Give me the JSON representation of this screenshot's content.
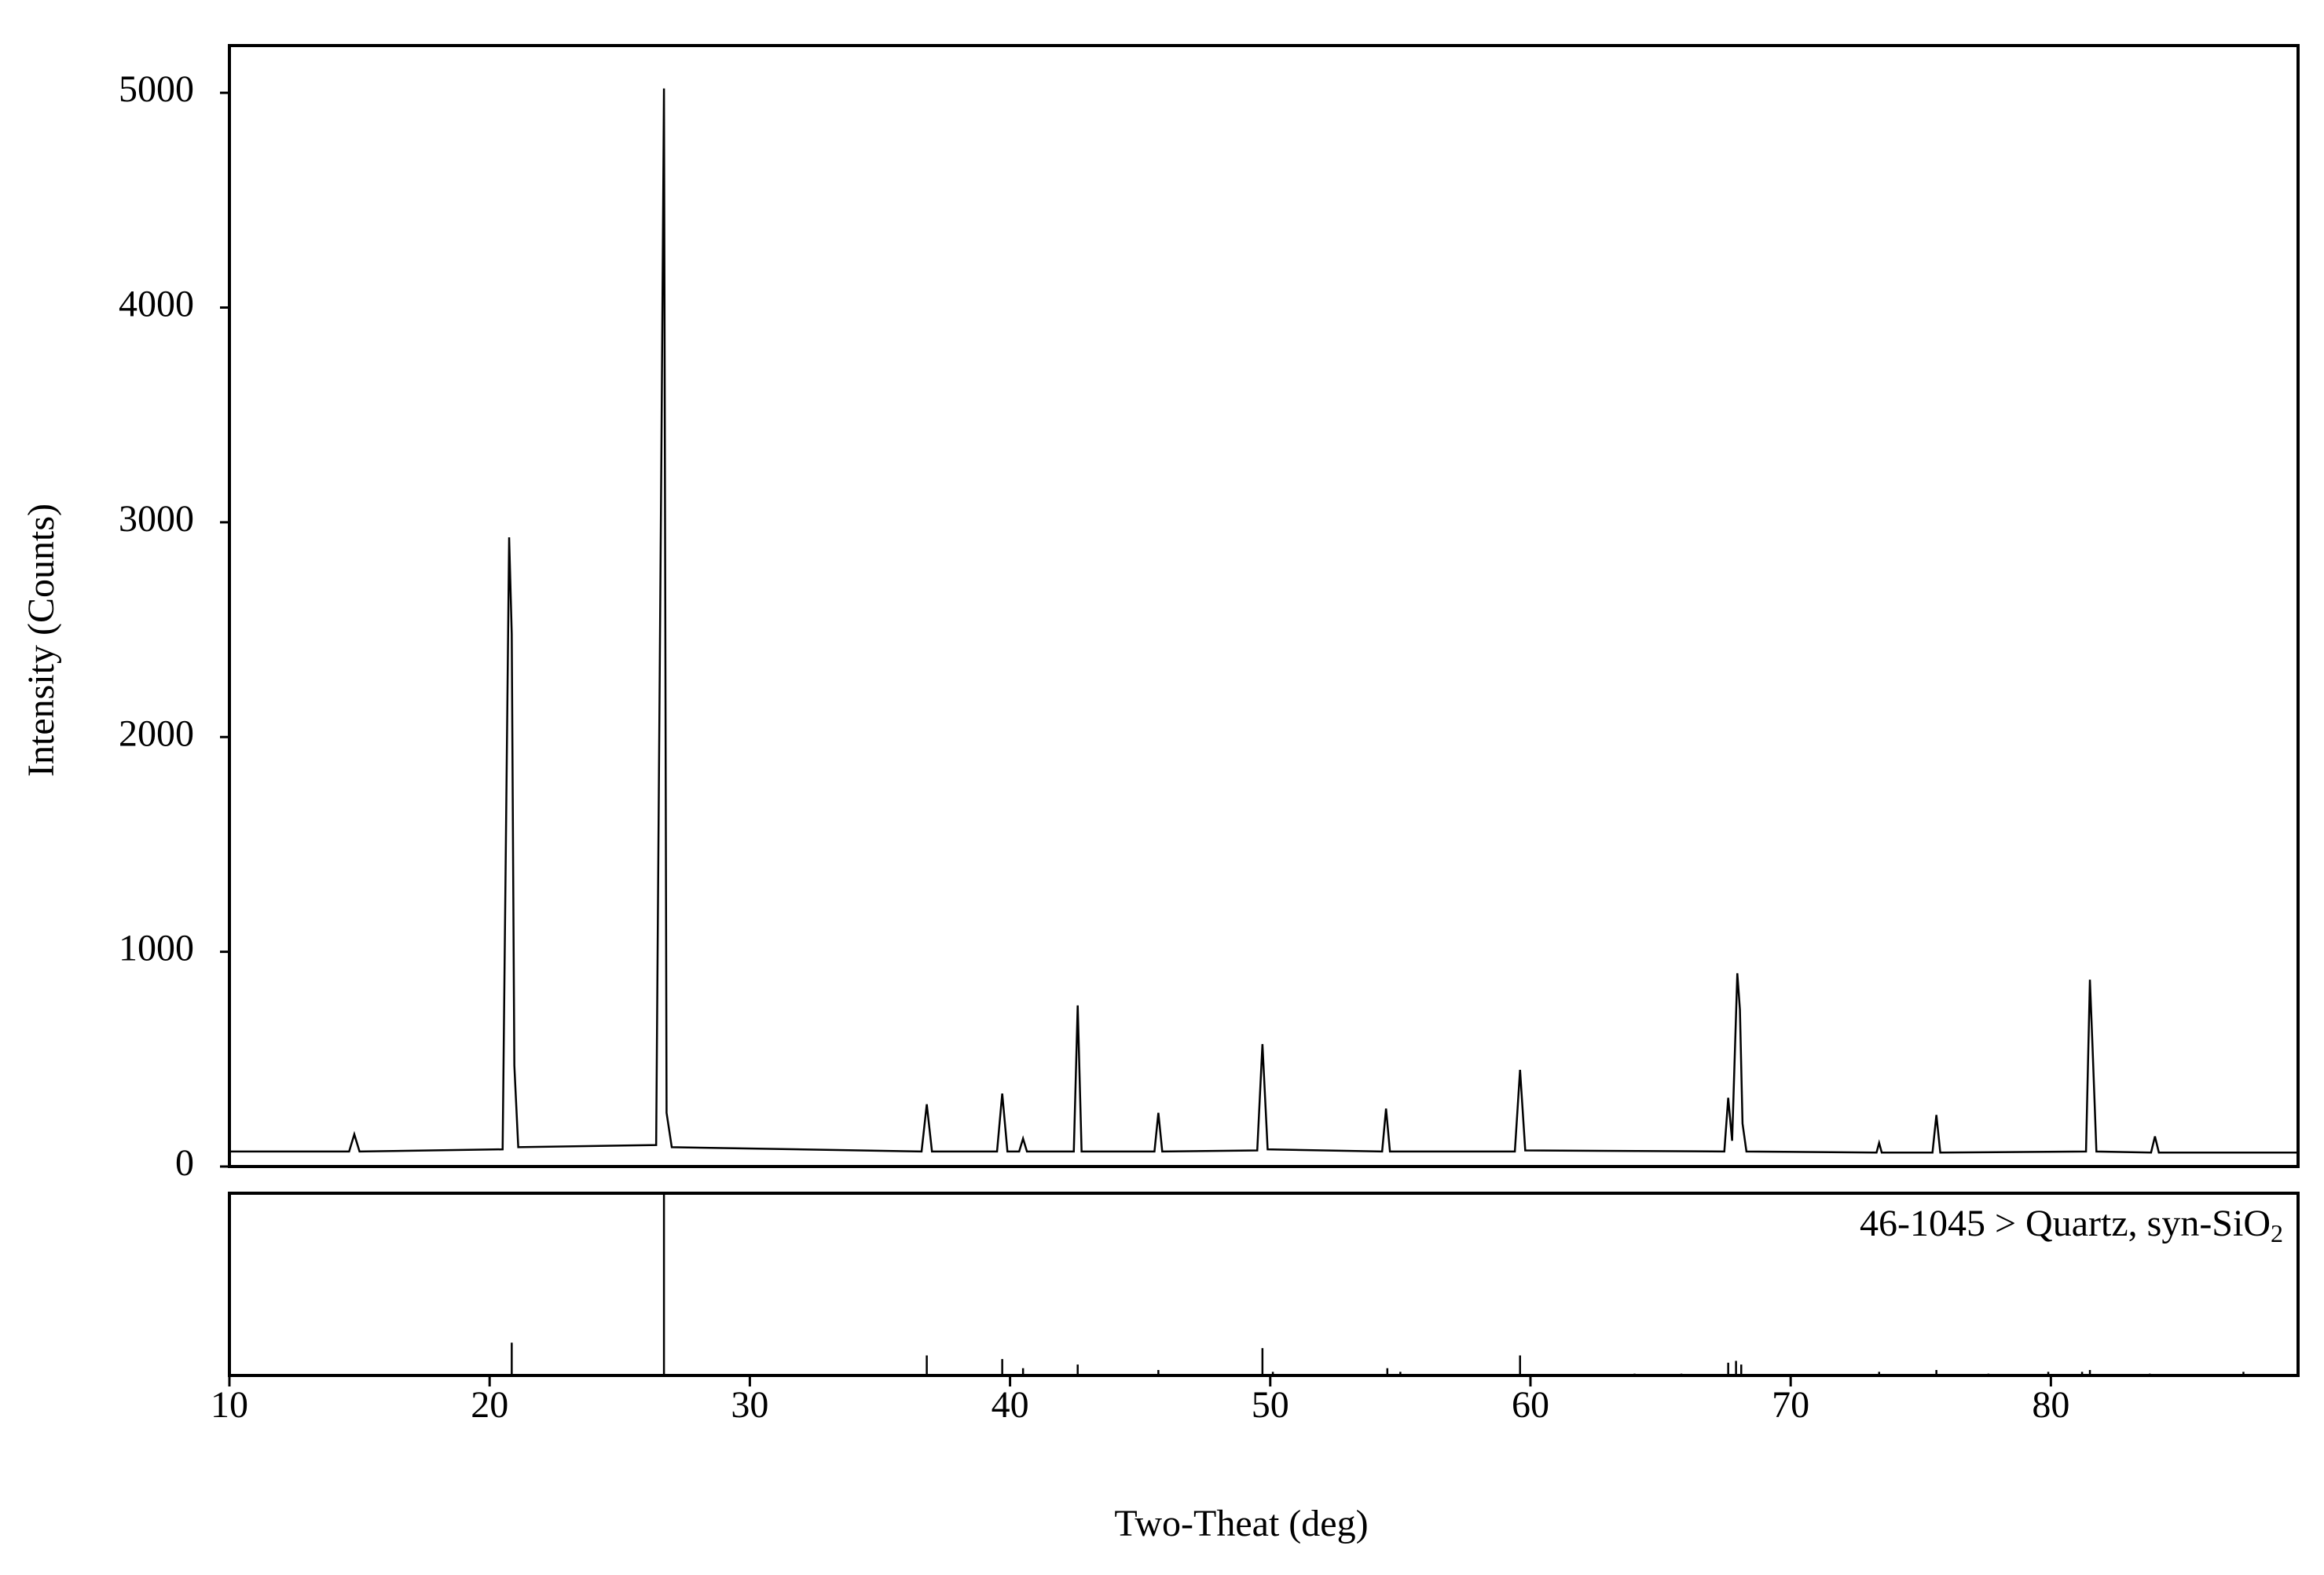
{
  "chart_data": [
    {
      "type": "line",
      "ylabel": "Intensity (Counts)",
      "xlim": [
        10,
        89.5
      ],
      "ylim": [
        0,
        5220
      ],
      "yticks": [
        0,
        1000,
        2000,
        3000,
        4000,
        5000
      ],
      "x": [
        10,
        14.6,
        14.8,
        15.0,
        20.5,
        20.75,
        20.85,
        20.95,
        21.1,
        26.4,
        26.6,
        26.7,
        26.8,
        27.0,
        36.6,
        36.8,
        37.0,
        39.5,
        39.7,
        39.9,
        40.35,
        40.5,
        40.65,
        42.45,
        42.6,
        42.75,
        45.55,
        45.7,
        45.85,
        49.5,
        49.7,
        49.9,
        54.3,
        54.45,
        54.6,
        59.4,
        59.6,
        59.8,
        67.45,
        67.6,
        67.75,
        67.95,
        68.05,
        68.15,
        68.3,
        73.3,
        73.4,
        73.5,
        75.45,
        75.6,
        75.75,
        81.35,
        81.5,
        81.6,
        81.75,
        83.85,
        84.0,
        84.15,
        89.5
      ],
      "series": [
        {
          "color": "#000000",
          "values": [
            70,
            70,
            150,
            70,
            80,
            2930,
            2480,
            470,
            90,
            100,
            3300,
            5020,
            250,
            90,
            70,
            290,
            70,
            70,
            340,
            70,
            70,
            130,
            70,
            70,
            750,
            70,
            70,
            250,
            70,
            75,
            570,
            80,
            70,
            270,
            70,
            70,
            450,
            75,
            70,
            320,
            120,
            900,
            730,
            200,
            70,
            65,
            110,
            65,
            65,
            240,
            65,
            70,
            870,
            560,
            70,
            65,
            140,
            65,
            65
          ]
        }
      ]
    },
    {
      "type": "stick",
      "xlabel": "Two-Theat (deg)",
      "xlim": [
        10,
        89.5
      ],
      "ylim": [
        0,
        100
      ],
      "xticks": [
        10,
        20,
        30,
        40,
        50,
        60,
        70,
        80
      ],
      "label": "46-1045 > Quartz, syn-SiO",
      "label_subscript": "2",
      "color": "#000000",
      "x": [
        20.85,
        26.7,
        36.8,
        39.7,
        40.5,
        42.6,
        45.7,
        49.7,
        50.1,
        54.5,
        55.0,
        59.6,
        64.0,
        65.8,
        67.6,
        67.9,
        68.1,
        73.4,
        75.6,
        77.6,
        79.9,
        81.2,
        81.5,
        83.8,
        87.4
      ],
      "values": [
        18,
        100,
        11,
        9,
        4,
        6,
        3,
        15,
        2,
        4,
        2,
        11,
        1,
        1,
        7,
        8,
        6,
        2,
        3,
        1,
        2,
        2,
        3,
        1,
        2
      ]
    }
  ]
}
